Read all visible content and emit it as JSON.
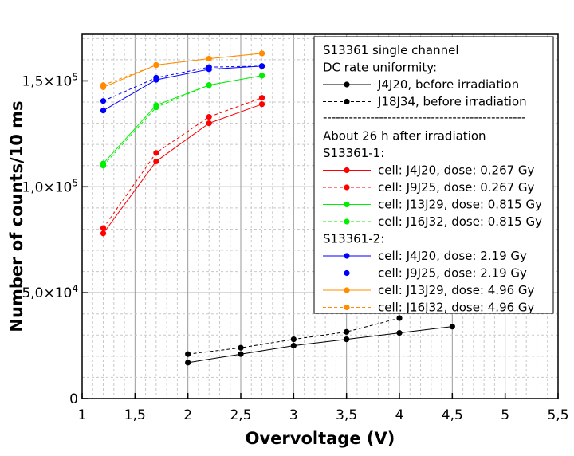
{
  "chart_data": {
    "type": "line",
    "xlabel": "Overvoltage (V)",
    "ylabel": "Number of counts/10 ms",
    "xlim": [
      1,
      5.5
    ],
    "ylim": [
      0,
      172000
    ],
    "x_ticks": [
      1,
      1.5,
      2,
      2.5,
      3,
      3.5,
      4,
      4.5,
      5,
      5.5
    ],
    "x_tick_labels": [
      "1",
      "1,5",
      "2",
      "2,5",
      "3",
      "3,5",
      "4",
      "4,5",
      "5",
      "5,5"
    ],
    "y_ticks": [
      0,
      50000,
      100000,
      150000
    ],
    "y_tick_labels": [
      {
        "mantissa": "0",
        "exponent": ""
      },
      {
        "mantissa": "5,0×10",
        "exponent": "4"
      },
      {
        "mantissa": "1,0×10",
        "exponent": "5"
      },
      {
        "mantissa": "1,5×10",
        "exponent": "5"
      }
    ],
    "grid": true,
    "legend_position": "top-right",
    "legend_title_lines": [
      "S13361 single channel",
      "DC rate uniformity:"
    ],
    "legend_separator": "-----------------------------------------------",
    "series": [
      {
        "name": "J4J20, before irradiation",
        "color": "#000000",
        "dashed": false,
        "x": [
          2,
          2.5,
          3,
          3.5,
          4,
          4.5
        ],
        "y": [
          17000,
          21000,
          25000,
          28000,
          31000,
          34000
        ]
      },
      {
        "name": "J18J34, before irradiation",
        "color": "#000000",
        "dashed": true,
        "x": [
          2,
          2.5,
          3,
          3.5,
          4
        ],
        "y": [
          21000,
          24000,
          28000,
          31500,
          38000
        ]
      },
      {
        "name": "cell: J4J20, dose: 0.267 Gy",
        "color": "#ff0000",
        "dashed": false,
        "group": "S13361-1:",
        "x": [
          1.2,
          1.7,
          2.2,
          2.7
        ],
        "y": [
          78000,
          112000,
          130000,
          139000
        ]
      },
      {
        "name": "cell: J9J25, dose: 0.267 Gy",
        "color": "#ff0000",
        "dashed": true,
        "x": [
          1.2,
          1.7,
          2.2,
          2.7
        ],
        "y": [
          80500,
          116000,
          133000,
          142000
        ]
      },
      {
        "name": "cell: J13J29, dose: 0.815 Gy",
        "color": "#00ee00",
        "dashed": false,
        "x": [
          1.2,
          1.7,
          2.2,
          2.7
        ],
        "y": [
          111000,
          138500,
          148000,
          152500
        ]
      },
      {
        "name": "cell: J16J32, dose: 0.815 Gy",
        "color": "#00ee00",
        "dashed": true,
        "x": [
          1.2,
          1.7,
          2.2,
          2.7
        ],
        "y": [
          110000,
          137500,
          148000,
          152500
        ]
      },
      {
        "name": "cell: J4J20, dose: 2.19 Gy",
        "color": "#0000ff",
        "dashed": false,
        "group": "S13361-2:",
        "x": [
          1.2,
          1.7,
          2.2,
          2.7
        ],
        "y": [
          136000,
          150500,
          155500,
          157000
        ]
      },
      {
        "name": "cell: J9J25, dose: 2.19 Gy",
        "color": "#0000ff",
        "dashed": true,
        "x": [
          1.2,
          1.7,
          2.2,
          2.7
        ],
        "y": [
          140500,
          151500,
          156500,
          157000
        ]
      },
      {
        "name": "cell: J13J29, dose: 4.96 Gy",
        "color": "#ff8c00",
        "dashed": false,
        "x": [
          1.2,
          1.7,
          2.2,
          2.7
        ],
        "y": [
          147000,
          157500,
          160500,
          163000
        ]
      },
      {
        "name": "cell: J16J32, dose: 4.96 Gy",
        "color": "#ff8c00",
        "dashed": true,
        "x": [
          1.2,
          1.7,
          2.2,
          2.7
        ],
        "y": [
          148000,
          157500,
          160500,
          163000
        ]
      }
    ],
    "legend_section_label": "About 26 h after irradiation"
  }
}
